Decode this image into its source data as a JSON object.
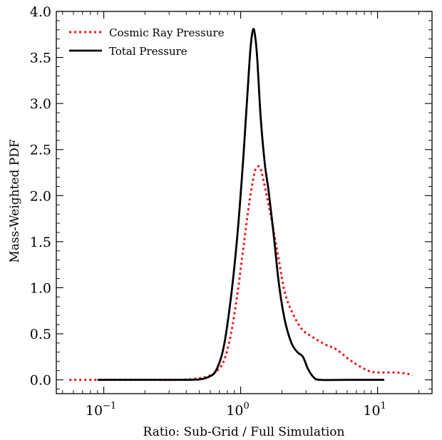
{
  "chart_data": {
    "type": "line",
    "xscale": "log",
    "xlabel": "Ratio: Sub-Grid / Full Simulation",
    "ylabel": "Mass-Weighted PDF",
    "xlim": [
      0.045,
      25
    ],
    "ylim": [
      -0.15,
      4.0
    ],
    "xticks": [
      {
        "value": 0.1,
        "base": "10",
        "exp": "−1"
      },
      {
        "value": 1,
        "base": "10",
        "exp": "0"
      },
      {
        "value": 10,
        "base": "10",
        "exp": "1"
      }
    ],
    "yticks": [
      "0.0",
      "0.5",
      "1.0",
      "1.5",
      "2.0",
      "2.5",
      "3.0",
      "3.5",
      "4.0"
    ],
    "ytick_values": [
      0,
      0.5,
      1.0,
      1.5,
      2.0,
      2.5,
      3.0,
      3.5,
      4.0
    ],
    "legend_position": "upper-left",
    "series": [
      {
        "name": "Cosmic Ray Pressure",
        "color": "#e8171d",
        "style": "dotted",
        "points": [
          [
            0.056,
            0.0
          ],
          [
            0.1,
            0.0
          ],
          [
            0.2,
            0.0
          ],
          [
            0.35,
            0.0
          ],
          [
            0.45,
            0.01
          ],
          [
            0.55,
            0.03
          ],
          [
            0.65,
            0.08
          ],
          [
            0.75,
            0.2
          ],
          [
            0.85,
            0.5
          ],
          [
            0.95,
            0.95
          ],
          [
            1.05,
            1.45
          ],
          [
            1.15,
            1.9
          ],
          [
            1.25,
            2.22
          ],
          [
            1.3,
            2.3
          ],
          [
            1.38,
            2.31
          ],
          [
            1.45,
            2.2
          ],
          [
            1.55,
            2.0
          ],
          [
            1.7,
            1.7
          ],
          [
            1.9,
            1.3
          ],
          [
            2.1,
            0.95
          ],
          [
            2.4,
            0.72
          ],
          [
            2.8,
            0.55
          ],
          [
            3.3,
            0.47
          ],
          [
            4.2,
            0.38
          ],
          [
            5.0,
            0.33
          ],
          [
            6.5,
            0.2
          ],
          [
            8.5,
            0.1
          ],
          [
            10.0,
            0.08
          ],
          [
            13.0,
            0.08
          ],
          [
            16.0,
            0.07
          ],
          [
            18.0,
            0.05
          ]
        ]
      },
      {
        "name": "Total Pressure",
        "color": "#000000",
        "style": "solid",
        "points": [
          [
            0.09,
            0.0
          ],
          [
            0.2,
            0.0
          ],
          [
            0.4,
            0.0
          ],
          [
            0.5,
            0.005
          ],
          [
            0.58,
            0.03
          ],
          [
            0.66,
            0.1
          ],
          [
            0.75,
            0.35
          ],
          [
            0.85,
            0.9
          ],
          [
            0.95,
            1.6
          ],
          [
            1.05,
            2.45
          ],
          [
            1.12,
            3.1
          ],
          [
            1.18,
            3.6
          ],
          [
            1.23,
            3.8
          ],
          [
            1.27,
            3.75
          ],
          [
            1.32,
            3.5
          ],
          [
            1.4,
            2.85
          ],
          [
            1.5,
            2.35
          ],
          [
            1.6,
            2.05
          ],
          [
            1.75,
            1.55
          ],
          [
            1.9,
            1.05
          ],
          [
            2.1,
            0.65
          ],
          [
            2.35,
            0.4
          ],
          [
            2.6,
            0.3
          ],
          [
            2.85,
            0.25
          ],
          [
            3.1,
            0.12
          ],
          [
            3.4,
            0.03
          ],
          [
            3.8,
            0.0
          ],
          [
            6.0,
            0.0
          ],
          [
            11.2,
            0.0
          ]
        ]
      }
    ]
  }
}
